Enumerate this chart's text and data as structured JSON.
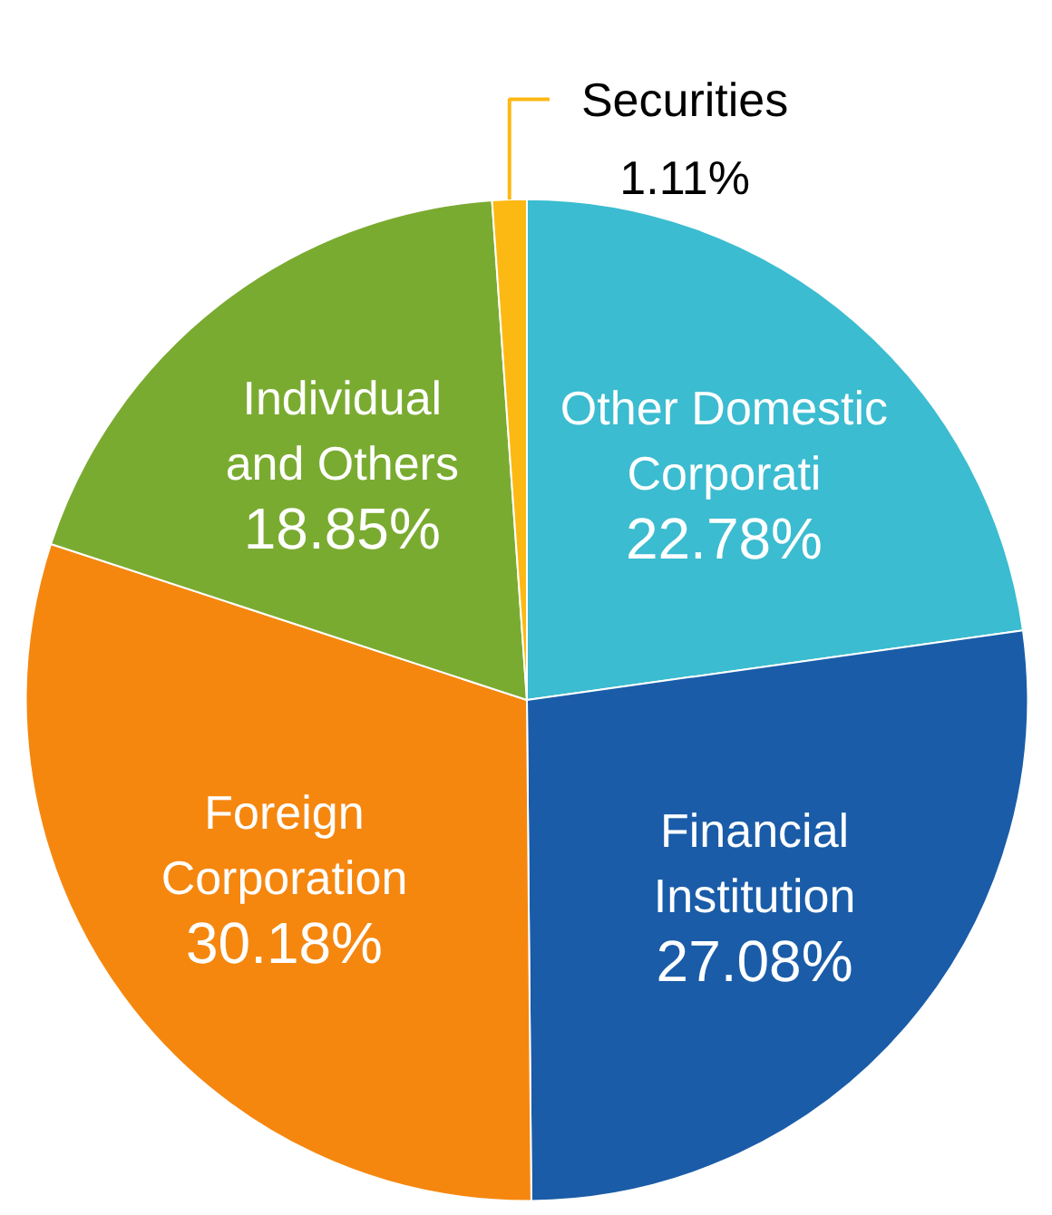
{
  "chart_data": {
    "type": "pie",
    "categories": [
      "Other Domestic\nCorporati",
      "Financial\nInstitution",
      "Foreign\nCorporation",
      "Individual\nand Others",
      "Securities"
    ],
    "values": [
      22.78,
      27.08,
      30.18,
      18.85,
      1.11
    ],
    "colors": [
      "#3bbcd0",
      "#1a5ca8",
      "#f5870f",
      "#7aab31",
      "#fdb913"
    ],
    "value_labels": [
      "22.78%",
      "27.08%",
      "30.18%",
      "18.85%",
      "1.11%"
    ]
  }
}
